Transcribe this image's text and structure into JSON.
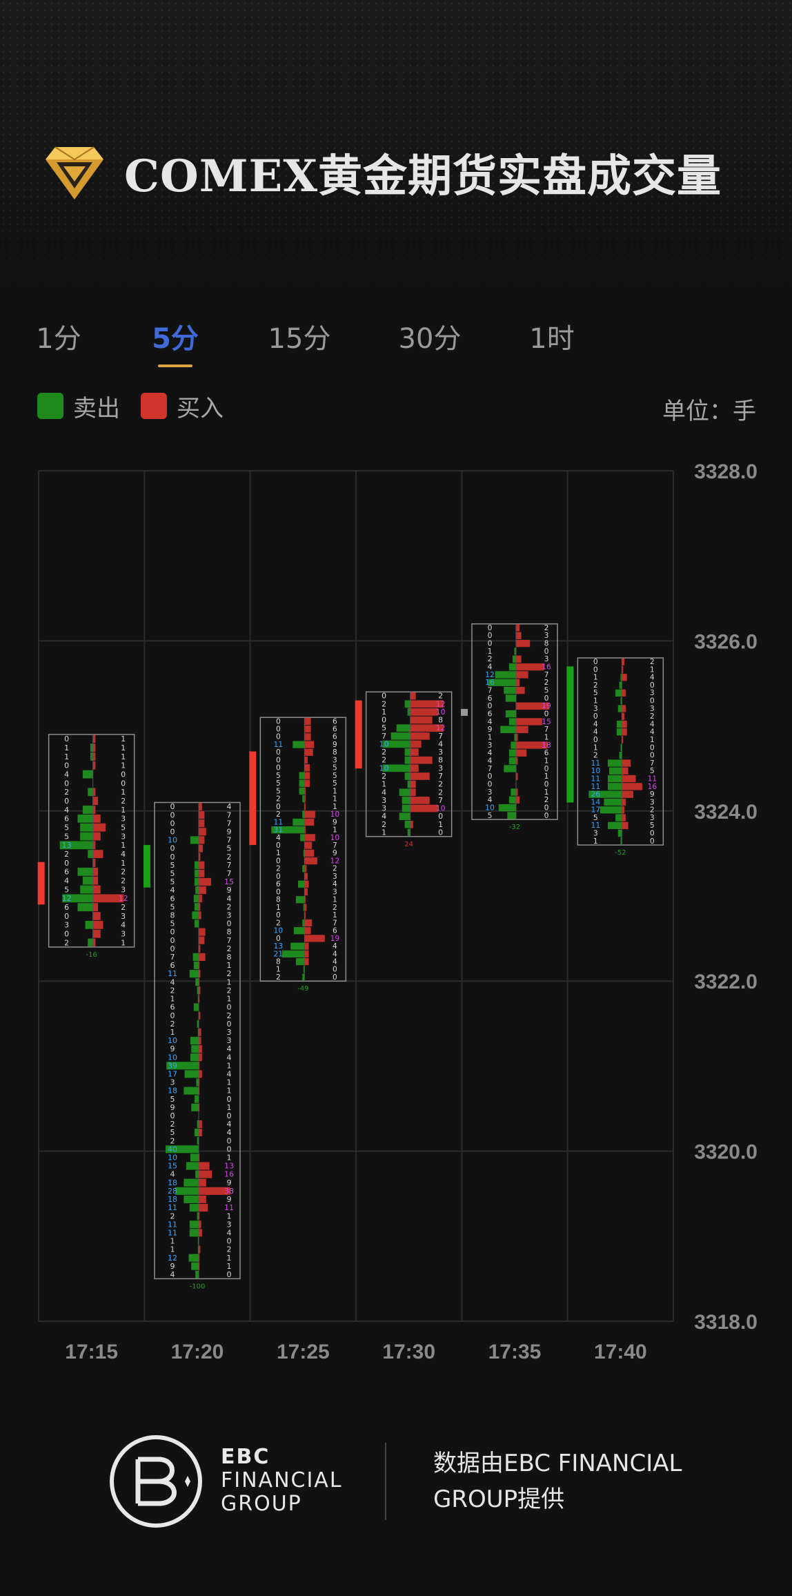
{
  "header": {
    "title": "COMEX黄金期货实盘成交量"
  },
  "tabs": [
    {
      "label": "1分",
      "active": false
    },
    {
      "label": "5分",
      "active": true
    },
    {
      "label": "15分",
      "active": false
    },
    {
      "label": "30分",
      "active": false
    },
    {
      "label": "1时",
      "active": false
    }
  ],
  "legend": [
    {
      "label": "卖出",
      "color": "#1e8a1e"
    },
    {
      "label": "买入",
      "color": "#d0342c"
    }
  ],
  "unit_label": "单位：手",
  "chart_data": {
    "type": "footprint",
    "ylim": [
      3318.0,
      3328.0
    ],
    "yticks": [
      "3328.0",
      "3326.0",
      "3324.0",
      "3322.0",
      "3320.0",
      "3318.0"
    ],
    "categories": [
      "17:15",
      "17:20",
      "17:25",
      "17:30",
      "17:35",
      "17:40"
    ],
    "colors": {
      "sell": "#1e8a1e",
      "buy": "#c0302a",
      "up": "#ef3b2f",
      "down": "#18a018",
      "flat": "#9a9a9a"
    },
    "bars": [
      {
        "time": "17:15",
        "high": 3324.9,
        "low": 3322.4,
        "open": 3322.9,
        "close": 3323.4,
        "delta": "-16",
        "sell": [
          0,
          1,
          1,
          0,
          4,
          0,
          2,
          0,
          4,
          6,
          5,
          5,
          13,
          2,
          0,
          6,
          4,
          5,
          12,
          6,
          0,
          3,
          0,
          2
        ],
        "buy": [
          1,
          1,
          1,
          1,
          0,
          0,
          1,
          2,
          1,
          3,
          5,
          3,
          1,
          4,
          1,
          2,
          2,
          3,
          12,
          2,
          3,
          4,
          3,
          1
        ]
      },
      {
        "time": "17:20",
        "high": 3324.1,
        "low": 3318.5,
        "open": 3323.6,
        "close": 3323.1,
        "delta": "-100",
        "sell": [
          0,
          0,
          0,
          0,
          10,
          0,
          0,
          5,
          5,
          5,
          4,
          6,
          5,
          8,
          5,
          0,
          0,
          0,
          7,
          6,
          11,
          4,
          2,
          1,
          6,
          0,
          2,
          1,
          10,
          9,
          10,
          39,
          17,
          3,
          18,
          5,
          9,
          0,
          2,
          5,
          2,
          40,
          10,
          15,
          4,
          18,
          28,
          18,
          11,
          2,
          11,
          11,
          1,
          1,
          12,
          9,
          4
        ],
        "buy": [
          4,
          7,
          7,
          9,
          7,
          5,
          2,
          7,
          7,
          15,
          9,
          4,
          2,
          3,
          0,
          8,
          7,
          2,
          8,
          1,
          2,
          1,
          2,
          1,
          0,
          2,
          0,
          3,
          3,
          4,
          4,
          1,
          4,
          1,
          1,
          0,
          1,
          0,
          4,
          4,
          0,
          0,
          1,
          13,
          16,
          9,
          38,
          9,
          11,
          1,
          3,
          4,
          0,
          2,
          1,
          1,
          0
        ]
      },
      {
        "time": "17:25",
        "high": 3325.1,
        "low": 3322.0,
        "open": 3323.6,
        "close": 3324.7,
        "delta": "-49",
        "sell": [
          0,
          0,
          0,
          11,
          0,
          0,
          0,
          5,
          5,
          5,
          2,
          0,
          2,
          11,
          31,
          4,
          0,
          1,
          0,
          2,
          0,
          6,
          0,
          8,
          1,
          0,
          2,
          10,
          0,
          13,
          21,
          8,
          1,
          2
        ],
        "buy": [
          6,
          6,
          6,
          9,
          8,
          3,
          5,
          5,
          5,
          1,
          1,
          1,
          10,
          9,
          1,
          10,
          7,
          9,
          12,
          2,
          3,
          4,
          3,
          1,
          2,
          1,
          7,
          6,
          19,
          4,
          4,
          4,
          0,
          0
        ]
      },
      {
        "time": "17:30",
        "high": 3325.4,
        "low": 3323.7,
        "open": 3324.5,
        "close": 3325.3,
        "delta": "24",
        "sell": [
          0,
          2,
          1,
          0,
          5,
          7,
          10,
          2,
          2,
          10,
          2,
          1,
          4,
          3,
          3,
          4,
          2,
          1
        ],
        "buy": [
          2,
          12,
          10,
          8,
          12,
          7,
          4,
          3,
          8,
          3,
          7,
          2,
          2,
          7,
          10,
          0,
          1,
          0
        ]
      },
      {
        "time": "17:35",
        "high": 3326.2,
        "low": 3323.9,
        "open": 3325.2,
        "close": 3325.2,
        "delta": "-32",
        "sell": [
          0,
          0,
          0,
          1,
          2,
          4,
          12,
          16,
          7,
          6,
          0,
          6,
          4,
          9,
          1,
          3,
          4,
          4,
          7,
          0,
          0,
          3,
          4,
          10,
          5
        ],
        "buy": [
          2,
          3,
          8,
          0,
          3,
          16,
          7,
          2,
          5,
          0,
          19,
          0,
          15,
          7,
          1,
          18,
          6,
          1,
          0,
          1,
          0,
          1,
          2,
          0,
          0
        ]
      },
      {
        "time": "17:40",
        "high": 3325.8,
        "low": 3323.6,
        "open": 3325.7,
        "close": 3324.1,
        "delta": "-52",
        "sell": [
          0,
          0,
          1,
          2,
          5,
          1,
          3,
          0,
          4,
          4,
          0,
          1,
          2,
          11,
          10,
          11,
          11,
          26,
          14,
          17,
          5,
          11,
          3,
          1
        ],
        "buy": [
          2,
          1,
          4,
          0,
          3,
          0,
          3,
          2,
          4,
          4,
          1,
          0,
          0,
          7,
          5,
          11,
          16,
          9,
          3,
          2,
          3,
          5,
          0,
          0
        ]
      }
    ]
  },
  "footer": {
    "brand_lines": [
      "EBC",
      "FINANCIAL",
      "GROUP"
    ],
    "credit": "数据由EBC FINANCIAL GROUP提供"
  }
}
